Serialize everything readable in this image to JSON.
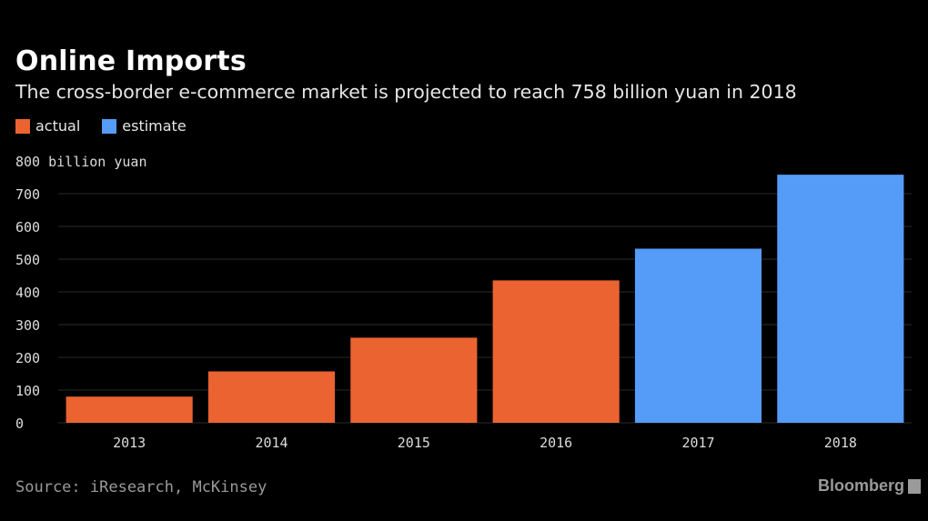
{
  "colors": {
    "background": "#000000",
    "actual": "#EB6330",
    "estimate": "#559BF8",
    "grid": "#2a2a2a",
    "tick_text": "#dcdcdc"
  },
  "chart_data": {
    "type": "bar",
    "title": "Online Imports",
    "subtitle": "The cross-border e-commerce market is projected to reach 758 billion yuan in 2018",
    "ylabel": "800 billion yuan",
    "ylim": [
      0,
      800
    ],
    "yticks": [
      0,
      100,
      200,
      300,
      400,
      500,
      600,
      700
    ],
    "grid": true,
    "legend_placement": "top-left",
    "categories": [
      "2013",
      "2014",
      "2015",
      "2016",
      "2017",
      "2018"
    ],
    "values": [
      80,
      157,
      260,
      435,
      532,
      758
    ],
    "bar_types": [
      "actual",
      "actual",
      "actual",
      "actual",
      "estimate",
      "estimate"
    ],
    "series": [
      {
        "name": "actual"
      },
      {
        "name": "estimate"
      }
    ]
  },
  "footer": {
    "source": "Source: iResearch, McKinsey",
    "brand": "Bloomberg"
  }
}
